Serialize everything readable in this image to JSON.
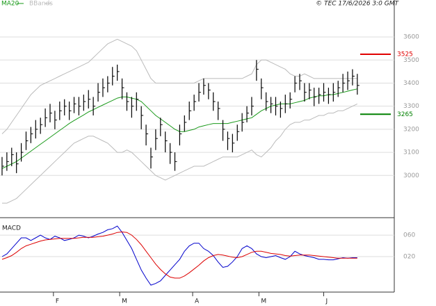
{
  "chart_data": [
    {
      "type": "ohlc",
      "source": "© TEC 17/6/2026 3:0 GMT",
      "xlim": [
        -0.43,
        81.7
      ],
      "ylim": [
        2820,
        3760
      ],
      "yticks": [
        3000,
        3100,
        3200,
        3300,
        3400,
        3500,
        3600
      ],
      "grid": true,
      "bar_color": "#000000",
      "high": [
        3080,
        3100,
        3120,
        3100,
        3140,
        3190,
        3210,
        3240,
        3250,
        3290,
        3310,
        3280,
        3320,
        3330,
        3320,
        3340,
        3340,
        3350,
        3370,
        3340,
        3400,
        3420,
        3430,
        3470,
        3480,
        3420,
        3360,
        3340,
        3360,
        3300,
        3220,
        3120,
        3200,
        3250,
        3190,
        3140,
        3100,
        3220,
        3260,
        3320,
        3350,
        3400,
        3420,
        3400,
        3360,
        3320,
        3240,
        3190,
        3180,
        3220,
        3270,
        3300,
        3340,
        3500,
        3420,
        3360,
        3340,
        3340,
        3320,
        3350,
        3360,
        3430,
        3440,
        3400,
        3400,
        3380,
        3380,
        3400,
        3380,
        3400,
        3410,
        3440,
        3450,
        3460,
        3440
      ],
      "low": [
        3000,
        3020,
        3040,
        3010,
        3060,
        3110,
        3140,
        3160,
        3180,
        3210,
        3230,
        3200,
        3240,
        3260,
        3240,
        3270,
        3260,
        3280,
        3290,
        3260,
        3320,
        3340,
        3360,
        3390,
        3410,
        3330,
        3280,
        3250,
        3280,
        3200,
        3130,
        3030,
        3110,
        3170,
        3100,
        3050,
        3020,
        3130,
        3190,
        3240,
        3280,
        3320,
        3350,
        3330,
        3280,
        3240,
        3150,
        3110,
        3100,
        3150,
        3190,
        3230,
        3260,
        3410,
        3330,
        3280,
        3270,
        3260,
        3250,
        3270,
        3290,
        3360,
        3370,
        3320,
        3330,
        3300,
        3310,
        3320,
        3310,
        3320,
        3340,
        3360,
        3370,
        3390,
        3350
      ],
      "close": [
        3040,
        3060,
        3090,
        3050,
        3100,
        3150,
        3180,
        3200,
        3220,
        3250,
        3270,
        3240,
        3280,
        3300,
        3280,
        3310,
        3300,
        3320,
        3330,
        3300,
        3360,
        3380,
        3400,
        3430,
        3450,
        3380,
        3320,
        3300,
        3330,
        3260,
        3180,
        3080,
        3160,
        3220,
        3150,
        3100,
        3060,
        3180,
        3230,
        3280,
        3320,
        3360,
        3390,
        3370,
        3320,
        3290,
        3200,
        3160,
        3140,
        3190,
        3230,
        3270,
        3300,
        3460,
        3380,
        3320,
        3310,
        3300,
        3290,
        3310,
        3330,
        3400,
        3410,
        3360,
        3370,
        3340,
        3350,
        3360,
        3350,
        3360,
        3380,
        3400,
        3410,
        3430,
        3390
      ],
      "series": [
        {
          "name": "MA20",
          "color": "#1a9a1a",
          "values": [
            3030,
            3040,
            3050,
            3060,
            3075,
            3090,
            3105,
            3120,
            3135,
            3150,
            3165,
            3180,
            3195,
            3210,
            3225,
            3238,
            3250,
            3262,
            3275,
            3285,
            3295,
            3305,
            3315,
            3325,
            3335,
            3340,
            3340,
            3335,
            3330,
            3320,
            3300,
            3280,
            3260,
            3245,
            3230,
            3215,
            3200,
            3190,
            3190,
            3195,
            3200,
            3210,
            3215,
            3220,
            3225,
            3225,
            3225,
            3225,
            3230,
            3235,
            3240,
            3245,
            3250,
            3265,
            3280,
            3290,
            3300,
            3305,
            3310,
            3310,
            3310,
            3315,
            3320,
            3325,
            3335,
            3340,
            3345,
            3345,
            3350,
            3350,
            3355,
            3360,
            3365,
            3370,
            3375
          ]
        },
        {
          "name": "BBands",
          "color": "#bbbbbb",
          "upper": [
            3180,
            3200,
            3230,
            3260,
            3290,
            3320,
            3350,
            3370,
            3390,
            3400,
            3410,
            3420,
            3430,
            3440,
            3450,
            3460,
            3470,
            3480,
            3490,
            3510,
            3530,
            3550,
            3570,
            3580,
            3590,
            3580,
            3570,
            3560,
            3540,
            3500,
            3460,
            3420,
            3400,
            3400,
            3400,
            3400,
            3400,
            3400,
            3400,
            3400,
            3400,
            3410,
            3420,
            3420,
            3420,
            3420,
            3420,
            3420,
            3420,
            3420,
            3420,
            3430,
            3440,
            3480,
            3500,
            3500,
            3490,
            3480,
            3470,
            3460,
            3440,
            3430,
            3430,
            3440,
            3430,
            3420,
            3420,
            3420,
            3420,
            3420,
            3420,
            3420,
            3420,
            3420,
            3420
          ],
          "lower": [
            2880,
            2880,
            2890,
            2900,
            2920,
            2940,
            2960,
            2980,
            3000,
            3020,
            3040,
            3060,
            3080,
            3100,
            3120,
            3140,
            3150,
            3160,
            3170,
            3170,
            3160,
            3150,
            3140,
            3120,
            3100,
            3100,
            3110,
            3100,
            3080,
            3060,
            3040,
            3020,
            3000,
            2990,
            2980,
            2990,
            3000,
            3010,
            3020,
            3030,
            3040,
            3040,
            3040,
            3050,
            3060,
            3070,
            3080,
            3080,
            3080,
            3080,
            3090,
            3100,
            3110,
            3090,
            3080,
            3100,
            3120,
            3150,
            3170,
            3200,
            3220,
            3230,
            3230,
            3240,
            3240,
            3250,
            3260,
            3260,
            3270,
            3270,
            3280,
            3280,
            3290,
            3300,
            3310
          ]
        }
      ],
      "levels": [
        {
          "value": 3525,
          "color": "#e00000"
        },
        {
          "value": 3265,
          "color": "#008000"
        }
      ]
    },
    {
      "type": "line",
      "title": "MACD",
      "xlim": [
        -0.43,
        81.7
      ],
      "ylim": [
        -46,
        86
      ],
      "yticks": [
        {
          "value": 20,
          "label": "020"
        },
        {
          "value": 60,
          "label": "060"
        }
      ],
      "grid": true,
      "xticks": [
        {
          "value": 10.7,
          "label": "F"
        },
        {
          "value": 24.5,
          "label": "M"
        },
        {
          "value": 39.7,
          "label": "A"
        },
        {
          "value": 53.5,
          "label": "M"
        },
        {
          "value": 67,
          "label": "J"
        }
      ],
      "series": [
        {
          "color": "#0000cc",
          "values": [
            20,
            25,
            35,
            45,
            55,
            55,
            50,
            55,
            60,
            55,
            52,
            58,
            55,
            50,
            52,
            55,
            60,
            58,
            55,
            58,
            62,
            65,
            70,
            72,
            77,
            65,
            50,
            35,
            15,
            -5,
            -20,
            -33,
            -30,
            -25,
            -15,
            -5,
            5,
            15,
            30,
            40,
            45,
            45,
            35,
            30,
            22,
            10,
            0,
            2,
            10,
            20,
            35,
            40,
            35,
            25,
            20,
            18,
            20,
            22,
            18,
            15,
            20,
            30,
            25,
            22,
            20,
            18,
            15,
            15,
            14,
            14,
            16,
            18,
            17,
            18,
            18
          ]
        },
        {
          "color": "#dd0000",
          "values": [
            15,
            18,
            22,
            28,
            35,
            40,
            43,
            46,
            49,
            51,
            52,
            53,
            54,
            54,
            54,
            54,
            55,
            56,
            56,
            56,
            57,
            58,
            60,
            62,
            65,
            66,
            65,
            60,
            52,
            42,
            30,
            18,
            6,
            -4,
            -12,
            -18,
            -20,
            -20,
            -16,
            -10,
            -3,
            4,
            12,
            18,
            22,
            24,
            23,
            21,
            19,
            18,
            20,
            24,
            28,
            30,
            30,
            28,
            26,
            25,
            24,
            22,
            21,
            22,
            23,
            23,
            23,
            22,
            21,
            20,
            19,
            18,
            17,
            17,
            17,
            17,
            17
          ]
        }
      ]
    }
  ]
}
